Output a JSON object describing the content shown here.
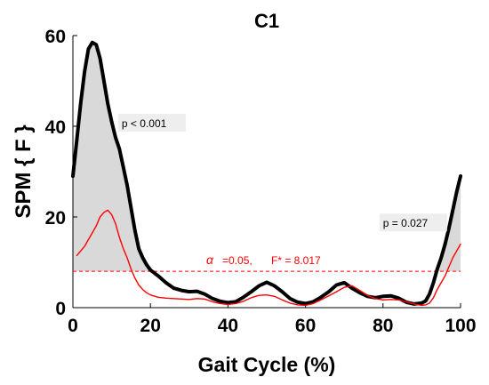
{
  "chart_data": {
    "type": "line",
    "title": "C1",
    "xlabel": "Gait Cycle (%)",
    "ylabel": "SPM { F }",
    "xlim": [
      0,
      100
    ],
    "ylim": [
      0,
      60
    ],
    "xticks": [
      "0",
      "20",
      "40",
      "60",
      "80",
      "100"
    ],
    "yticks": [
      "0",
      "20",
      "40",
      "60"
    ],
    "grid": false,
    "threshold": {
      "value": 8.017,
      "alpha_symbol": "α",
      "alpha_text": "=0.05,",
      "fstar_text": "F* = 8.017",
      "color": "#ff0000"
    },
    "annotations": [
      {
        "text": "p < 0.001",
        "x": 12.6,
        "y": 40
      },
      {
        "text": "p = 0.027",
        "x": 80,
        "y": 18
      }
    ],
    "series": [
      {
        "color": "#000000",
        "x": [
          0,
          1,
          2,
          3,
          4,
          5,
          6,
          7,
          8,
          9,
          10,
          11,
          12,
          13,
          14,
          15,
          16,
          17,
          18,
          19,
          20,
          22,
          24,
          26,
          28,
          30,
          32,
          34,
          36,
          38,
          40,
          42,
          44,
          46,
          48,
          50,
          52,
          54,
          56,
          58,
          60,
          62,
          64,
          66,
          68,
          70,
          72,
          74,
          76,
          78,
          80,
          82,
          84,
          86,
          88,
          90,
          91,
          92,
          93,
          94,
          95,
          96,
          97,
          98,
          99,
          100
        ],
        "values": [
          29,
          37,
          45,
          52,
          57,
          58.5,
          58,
          55,
          50,
          45,
          41,
          37.5,
          35,
          31,
          27,
          22,
          17,
          13,
          11,
          9.5,
          8.3,
          7,
          5.5,
          4.3,
          3.8,
          3.5,
          3.6,
          3.0,
          2.0,
          1.4,
          1.1,
          1.3,
          2.3,
          3.5,
          4.8,
          5.6,
          4.8,
          3.5,
          2.0,
          1.2,
          0.9,
          1.3,
          2.3,
          3.5,
          5.0,
          5.5,
          4.3,
          3.3,
          2.5,
          2.2,
          2.5,
          2.6,
          2.1,
          1.2,
          0.8,
          1.0,
          1.5,
          3,
          5.5,
          8.5,
          11,
          14,
          17.5,
          21.5,
          25.5,
          29
        ]
      },
      {
        "color": "#ff0000",
        "x": [
          1,
          2,
          3,
          4,
          5,
          6,
          7,
          8,
          9,
          10,
          11,
          12,
          13,
          14,
          15,
          16,
          17,
          18,
          19,
          20,
          22,
          24,
          26,
          28,
          30,
          32,
          34,
          36,
          38,
          40,
          42,
          44,
          46,
          48,
          50,
          52,
          54,
          56,
          58,
          60,
          62,
          64,
          66,
          68,
          70,
          72,
          74,
          76,
          78,
          80,
          82,
          84,
          86,
          88,
          90,
          91,
          92,
          93,
          94,
          95,
          96,
          97,
          98,
          99,
          100
        ],
        "values": [
          11.5,
          12.5,
          13.5,
          15,
          16.5,
          18,
          20,
          21,
          21.5,
          20.5,
          18.5,
          15.5,
          13,
          11,
          8.5,
          6.5,
          5,
          4,
          3.3,
          2.8,
          2.3,
          2.1,
          2.0,
          1.9,
          1.8,
          2.0,
          1.9,
          1.3,
          0.9,
          0.7,
          0.9,
          1.4,
          2.2,
          2.7,
          2.8,
          2.5,
          1.7,
          1.0,
          0.6,
          0.5,
          0.9,
          1.7,
          2.6,
          3.5,
          4.5,
          4.8,
          3.8,
          2.7,
          2.0,
          1.7,
          1.8,
          1.7,
          1.3,
          0.8,
          0.5,
          0.6,
          1.0,
          2.2,
          4.0,
          5.5,
          7.0,
          9.0,
          11,
          12.5,
          14
        ]
      }
    ]
  }
}
